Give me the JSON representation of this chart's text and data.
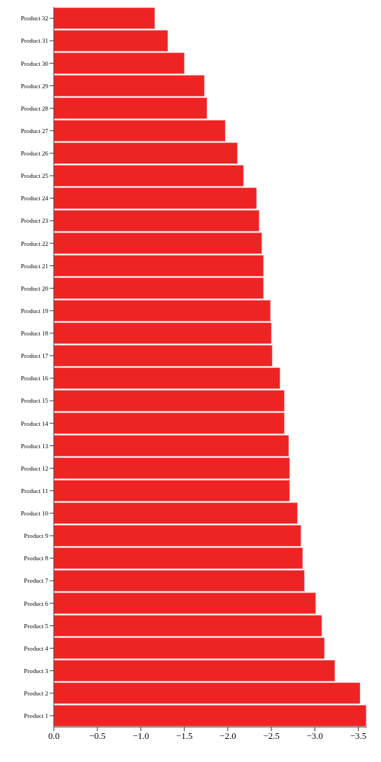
{
  "chart_data": {
    "type": "bar",
    "orientation": "horizontal",
    "categories": [
      "Product 32",
      "Product 31",
      "Product 30",
      "Product 29",
      "Product 28",
      "Product 27",
      "Product 26",
      "Product 25",
      "Product 24",
      "Product 23",
      "Product 22",
      "Product 21",
      "Product 20",
      "Product 19",
      "Product 18",
      "Product 17",
      "Product 16",
      "Product 15",
      "Product 14",
      "Product 13",
      "Product 12",
      "Product 11",
      "Product 10",
      "Product 9",
      "Product 8",
      "Product 7",
      "Product 6",
      "Product 5",
      "Product 4",
      "Product 3",
      "Product 2",
      "Product 1"
    ],
    "values": [
      -1.16,
      -1.31,
      -1.5,
      -1.73,
      -1.76,
      -1.97,
      -2.11,
      -2.18,
      -2.33,
      -2.36,
      -2.39,
      -2.41,
      -2.41,
      -2.49,
      -2.5,
      -2.51,
      -2.6,
      -2.65,
      -2.65,
      -2.7,
      -2.71,
      -2.71,
      -2.8,
      -2.84,
      -2.86,
      -2.88,
      -3.01,
      -3.08,
      -3.11,
      -3.23,
      -3.52,
      -3.59
    ],
    "color": "#ee2324",
    "xlim": [
      0,
      -3.6
    ],
    "xticks": [
      {
        "value": 0,
        "label": "0.0"
      },
      {
        "value": -0.5,
        "label": "−0.5"
      },
      {
        "value": -1,
        "label": "−1.0"
      },
      {
        "value": -1.5,
        "label": "−1.5"
      },
      {
        "value": -2,
        "label": "−2.0"
      },
      {
        "value": -2.5,
        "label": "−2.5"
      },
      {
        "value": -3,
        "label": "−3.0"
      },
      {
        "value": -3.5,
        "label": "−3.5"
      }
    ],
    "grid": false,
    "legend": false
  }
}
